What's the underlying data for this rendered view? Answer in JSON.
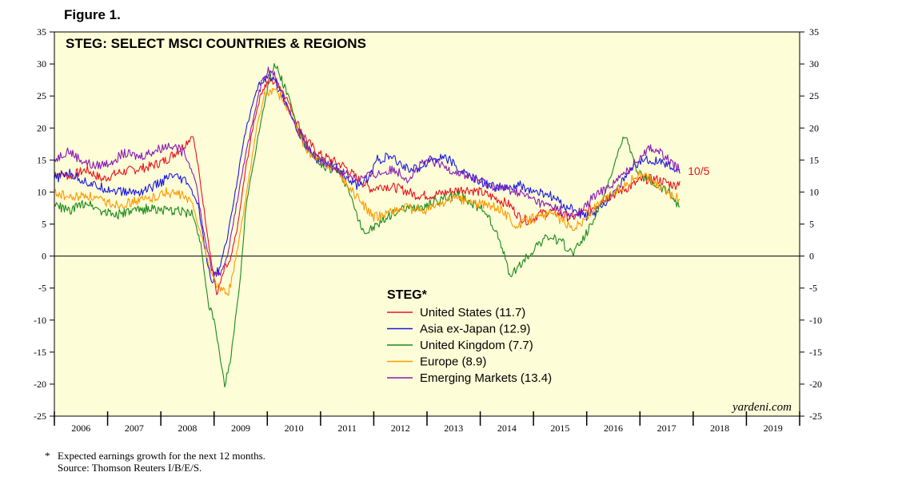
{
  "figure_label": "Figure 1.",
  "footnote": {
    "marker": "*",
    "line1": "Expected earnings growth for the next 12 months.",
    "line2": "Source: Thomson Reuters I/B/E/S."
  },
  "colors": {
    "plot_background": "#fdfdd8",
    "united_states": "#e8141c",
    "asia_ex_japan": "#1a1ae0",
    "united_kingdom": "#1a8a1a",
    "europe": "#ff9900",
    "emerging_markets": "#8a1ab4",
    "annotation": "#e8141c"
  },
  "chart_data": {
    "type": "line",
    "title": "STEG: SELECT MSCI COUNTRIES & REGIONS",
    "legend_title": "STEG*",
    "watermark": "yardeni.com",
    "annotation": "10/5",
    "xlim": [
      2006,
      2020
    ],
    "ylim": [
      -25,
      35
    ],
    "y_ticks": [
      35,
      30,
      25,
      20,
      15,
      10,
      5,
      0,
      -5,
      -10,
      -15,
      -20,
      -25
    ],
    "y_tick_labels": [
      "35",
      "30",
      "25",
      "20",
      "15",
      "10",
      "5",
      "0",
      "-5",
      "-10",
      "-15",
      "-20",
      "-25"
    ],
    "x_tick_labels": [
      "2006",
      "2007",
      "2008",
      "2009",
      "2010",
      "2011",
      "2012",
      "2013",
      "2014",
      "2015",
      "2016",
      "2017",
      "2018",
      "2019"
    ],
    "zero_line": true,
    "series": [
      {
        "name": "United States",
        "legend_label": "United States (11.7)",
        "color_key": "united_states",
        "points": [
          [
            2006.0,
            13.0
          ],
          [
            2006.3,
            12.5
          ],
          [
            2006.6,
            13.5
          ],
          [
            2006.9,
            12.0
          ],
          [
            2007.2,
            13.0
          ],
          [
            2007.5,
            13.5
          ],
          [
            2007.8,
            14.0
          ],
          [
            2008.1,
            15.0
          ],
          [
            2008.4,
            17.0
          ],
          [
            2008.6,
            19.0
          ],
          [
            2008.7,
            14.0
          ],
          [
            2008.85,
            5.0
          ],
          [
            2008.95,
            -1.0
          ],
          [
            2009.05,
            -6.0
          ],
          [
            2009.2,
            -2.0
          ],
          [
            2009.3,
            -1.0
          ],
          [
            2009.45,
            5.0
          ],
          [
            2009.6,
            14.0
          ],
          [
            2009.75,
            21.0
          ],
          [
            2009.9,
            26.0
          ],
          [
            2010.05,
            27.5
          ],
          [
            2010.2,
            27.0
          ],
          [
            2010.35,
            25.0
          ],
          [
            2010.55,
            21.0
          ],
          [
            2010.75,
            18.0
          ],
          [
            2010.95,
            16.0
          ],
          [
            2011.2,
            15.0
          ],
          [
            2011.45,
            14.0
          ],
          [
            2011.7,
            12.0
          ],
          [
            2011.95,
            10.5
          ],
          [
            2012.2,
            11.0
          ],
          [
            2012.5,
            10.5
          ],
          [
            2012.8,
            9.5
          ],
          [
            2013.1,
            9.5
          ],
          [
            2013.4,
            10.0
          ],
          [
            2013.7,
            10.5
          ],
          [
            2014.0,
            10.0
          ],
          [
            2014.3,
            9.0
          ],
          [
            2014.55,
            8.0
          ],
          [
            2014.75,
            6.0
          ],
          [
            2014.9,
            5.5
          ],
          [
            2015.1,
            6.5
          ],
          [
            2015.3,
            7.0
          ],
          [
            2015.5,
            6.5
          ],
          [
            2015.7,
            6.0
          ],
          [
            2015.9,
            6.5
          ],
          [
            2016.1,
            7.5
          ],
          [
            2016.35,
            9.0
          ],
          [
            2016.6,
            10.0
          ],
          [
            2016.85,
            11.0
          ],
          [
            2017.05,
            12.0
          ],
          [
            2017.3,
            12.0
          ],
          [
            2017.5,
            11.5
          ],
          [
            2017.65,
            11.0
          ],
          [
            2017.75,
            11.7
          ]
        ]
      },
      {
        "name": "Asia ex-Japan",
        "legend_label": "Asia ex-Japan (12.9)",
        "color_key": "asia_ex_japan",
        "points": [
          [
            2006.0,
            12.0
          ],
          [
            2006.25,
            13.0
          ],
          [
            2006.5,
            12.0
          ],
          [
            2006.75,
            11.0
          ],
          [
            2007.0,
            10.5
          ],
          [
            2007.3,
            10.0
          ],
          [
            2007.6,
            10.0
          ],
          [
            2007.9,
            11.0
          ],
          [
            2008.2,
            12.5
          ],
          [
            2008.5,
            11.5
          ],
          [
            2008.7,
            8.0
          ],
          [
            2008.85,
            0.0
          ],
          [
            2008.95,
            -4.0
          ],
          [
            2009.1,
            -2.0
          ],
          [
            2009.25,
            3.0
          ],
          [
            2009.4,
            10.0
          ],
          [
            2009.55,
            18.0
          ],
          [
            2009.7,
            23.0
          ],
          [
            2009.85,
            27.0
          ],
          [
            2010.0,
            28.0
          ],
          [
            2010.15,
            27.0
          ],
          [
            2010.35,
            24.0
          ],
          [
            2010.55,
            20.0
          ],
          [
            2010.75,
            17.0
          ],
          [
            2010.95,
            15.0
          ],
          [
            2011.2,
            14.5
          ],
          [
            2011.45,
            12.5
          ],
          [
            2011.7,
            11.0
          ],
          [
            2011.9,
            12.0
          ],
          [
            2012.05,
            15.0
          ],
          [
            2012.3,
            15.5
          ],
          [
            2012.55,
            14.0
          ],
          [
            2012.8,
            13.5
          ],
          [
            2013.05,
            15.0
          ],
          [
            2013.35,
            15.5
          ],
          [
            2013.6,
            13.5
          ],
          [
            2013.9,
            12.0
          ],
          [
            2014.2,
            11.0
          ],
          [
            2014.5,
            10.5
          ],
          [
            2014.75,
            11.0
          ],
          [
            2015.0,
            10.0
          ],
          [
            2015.3,
            9.5
          ],
          [
            2015.55,
            8.0
          ],
          [
            2015.8,
            7.0
          ],
          [
            2016.0,
            6.0
          ],
          [
            2016.2,
            7.0
          ],
          [
            2016.4,
            9.0
          ],
          [
            2016.6,
            11.0
          ],
          [
            2016.8,
            13.0
          ],
          [
            2017.05,
            15.0
          ],
          [
            2017.3,
            15.0
          ],
          [
            2017.55,
            14.0
          ],
          [
            2017.75,
            12.9
          ]
        ]
      },
      {
        "name": "United Kingdom",
        "legend_label": "United Kingdom (7.7)",
        "color_key": "united_kingdom",
        "points": [
          [
            2006.0,
            8.0
          ],
          [
            2006.3,
            7.0
          ],
          [
            2006.6,
            8.5
          ],
          [
            2006.9,
            7.0
          ],
          [
            2007.2,
            6.5
          ],
          [
            2007.5,
            7.0
          ],
          [
            2007.8,
            7.5
          ],
          [
            2008.1,
            7.0
          ],
          [
            2008.4,
            7.0
          ],
          [
            2008.6,
            6.5
          ],
          [
            2008.75,
            2.0
          ],
          [
            2008.9,
            -8.0
          ],
          [
            2009.0,
            -10.0
          ],
          [
            2009.1,
            -15.0
          ],
          [
            2009.2,
            -20.0
          ],
          [
            2009.3,
            -17.0
          ],
          [
            2009.4,
            -10.0
          ],
          [
            2009.5,
            -3.0
          ],
          [
            2009.6,
            8.0
          ],
          [
            2009.75,
            15.0
          ],
          [
            2009.9,
            22.0
          ],
          [
            2010.05,
            28.0
          ],
          [
            2010.15,
            30.0
          ],
          [
            2010.25,
            28.0
          ],
          [
            2010.4,
            25.0
          ],
          [
            2010.6,
            19.0
          ],
          [
            2010.8,
            16.0
          ],
          [
            2011.0,
            14.0
          ],
          [
            2011.3,
            13.5
          ],
          [
            2011.5,
            11.0
          ],
          [
            2011.7,
            6.0
          ],
          [
            2011.85,
            3.5
          ],
          [
            2012.1,
            5.0
          ],
          [
            2012.4,
            7.0
          ],
          [
            2012.7,
            7.5
          ],
          [
            2013.0,
            8.0
          ],
          [
            2013.3,
            9.0
          ],
          [
            2013.6,
            9.5
          ],
          [
            2013.9,
            8.0
          ],
          [
            2014.1,
            7.0
          ],
          [
            2014.3,
            4.0
          ],
          [
            2014.45,
            0.0
          ],
          [
            2014.55,
            -3.0
          ],
          [
            2014.7,
            -2.0
          ],
          [
            2014.9,
            0.0
          ],
          [
            2015.1,
            2.0
          ],
          [
            2015.3,
            3.0
          ],
          [
            2015.55,
            2.0
          ],
          [
            2015.75,
            0.5
          ],
          [
            2015.95,
            3.0
          ],
          [
            2016.15,
            6.0
          ],
          [
            2016.35,
            10.0
          ],
          [
            2016.55,
            15.0
          ],
          [
            2016.7,
            19.0
          ],
          [
            2016.8,
            17.0
          ],
          [
            2016.95,
            13.0
          ],
          [
            2017.15,
            12.0
          ],
          [
            2017.35,
            11.0
          ],
          [
            2017.55,
            10.0
          ],
          [
            2017.75,
            7.7
          ]
        ]
      },
      {
        "name": "Europe",
        "legend_label": "Europe (8.9)",
        "color_key": "europe",
        "points": [
          [
            2006.0,
            10.0
          ],
          [
            2006.3,
            9.0
          ],
          [
            2006.6,
            9.5
          ],
          [
            2006.9,
            8.5
          ],
          [
            2007.2,
            8.0
          ],
          [
            2007.5,
            8.5
          ],
          [
            2007.8,
            9.0
          ],
          [
            2008.1,
            10.0
          ],
          [
            2008.4,
            9.5
          ],
          [
            2008.6,
            8.0
          ],
          [
            2008.8,
            2.0
          ],
          [
            2008.95,
            -3.0
          ],
          [
            2009.1,
            -5.0
          ],
          [
            2009.25,
            -6.0
          ],
          [
            2009.35,
            -3.0
          ],
          [
            2009.5,
            4.0
          ],
          [
            2009.65,
            12.0
          ],
          [
            2009.8,
            20.0
          ],
          [
            2009.95,
            25.0
          ],
          [
            2010.1,
            26.0
          ],
          [
            2010.25,
            25.0
          ],
          [
            2010.45,
            22.0
          ],
          [
            2010.65,
            18.0
          ],
          [
            2010.85,
            15.5
          ],
          [
            2011.1,
            14.5
          ],
          [
            2011.35,
            13.0
          ],
          [
            2011.6,
            10.0
          ],
          [
            2011.8,
            8.0
          ],
          [
            2012.0,
            6.0
          ],
          [
            2012.3,
            7.0
          ],
          [
            2012.6,
            7.5
          ],
          [
            2012.9,
            7.0
          ],
          [
            2013.2,
            8.0
          ],
          [
            2013.5,
            9.0
          ],
          [
            2013.8,
            8.5
          ],
          [
            2014.1,
            8.0
          ],
          [
            2014.35,
            7.5
          ],
          [
            2014.55,
            6.0
          ],
          [
            2014.7,
            4.5
          ],
          [
            2014.85,
            5.5
          ],
          [
            2015.05,
            6.0
          ],
          [
            2015.3,
            6.5
          ],
          [
            2015.55,
            5.5
          ],
          [
            2015.75,
            4.5
          ],
          [
            2015.95,
            5.5
          ],
          [
            2016.15,
            7.5
          ],
          [
            2016.35,
            9.0
          ],
          [
            2016.6,
            10.5
          ],
          [
            2016.85,
            12.0
          ],
          [
            2017.05,
            13.0
          ],
          [
            2017.25,
            11.5
          ],
          [
            2017.5,
            10.0
          ],
          [
            2017.75,
            8.9
          ]
        ]
      },
      {
        "name": "Emerging Markets",
        "legend_label": "Emerging Markets (13.4)",
        "color_key": "emerging_markets",
        "points": [
          [
            2006.0,
            15.0
          ],
          [
            2006.25,
            16.5
          ],
          [
            2006.5,
            15.0
          ],
          [
            2006.75,
            14.0
          ],
          [
            2007.0,
            14.5
          ],
          [
            2007.3,
            16.0
          ],
          [
            2007.6,
            15.5
          ],
          [
            2007.9,
            16.5
          ],
          [
            2008.2,
            17.5
          ],
          [
            2008.45,
            16.0
          ],
          [
            2008.65,
            12.0
          ],
          [
            2008.8,
            4.0
          ],
          [
            2008.95,
            -2.0
          ],
          [
            2009.1,
            -3.0
          ],
          [
            2009.25,
            0.0
          ],
          [
            2009.4,
            7.0
          ],
          [
            2009.55,
            14.0
          ],
          [
            2009.7,
            20.0
          ],
          [
            2009.85,
            26.0
          ],
          [
            2010.0,
            29.0
          ],
          [
            2010.15,
            28.0
          ],
          [
            2010.35,
            24.0
          ],
          [
            2010.55,
            20.0
          ],
          [
            2010.75,
            17.0
          ],
          [
            2010.95,
            15.0
          ],
          [
            2011.2,
            14.0
          ],
          [
            2011.45,
            13.0
          ],
          [
            2011.7,
            12.0
          ],
          [
            2011.9,
            12.5
          ],
          [
            2012.15,
            13.0
          ],
          [
            2012.4,
            13.5
          ],
          [
            2012.65,
            12.0
          ],
          [
            2012.85,
            14.0
          ],
          [
            2013.05,
            15.0
          ],
          [
            2013.3,
            14.0
          ],
          [
            2013.6,
            13.0
          ],
          [
            2013.9,
            12.0
          ],
          [
            2014.2,
            11.0
          ],
          [
            2014.45,
            10.5
          ],
          [
            2014.7,
            10.0
          ],
          [
            2014.95,
            9.0
          ],
          [
            2015.2,
            8.0
          ],
          [
            2015.45,
            7.5
          ],
          [
            2015.7,
            6.0
          ],
          [
            2015.9,
            7.0
          ],
          [
            2016.1,
            9.0
          ],
          [
            2016.35,
            10.5
          ],
          [
            2016.6,
            12.0
          ],
          [
            2016.85,
            14.0
          ],
          [
            2017.05,
            16.0
          ],
          [
            2017.2,
            17.0
          ],
          [
            2017.4,
            16.0
          ],
          [
            2017.6,
            14.5
          ],
          [
            2017.75,
            13.4
          ]
        ]
      }
    ]
  }
}
